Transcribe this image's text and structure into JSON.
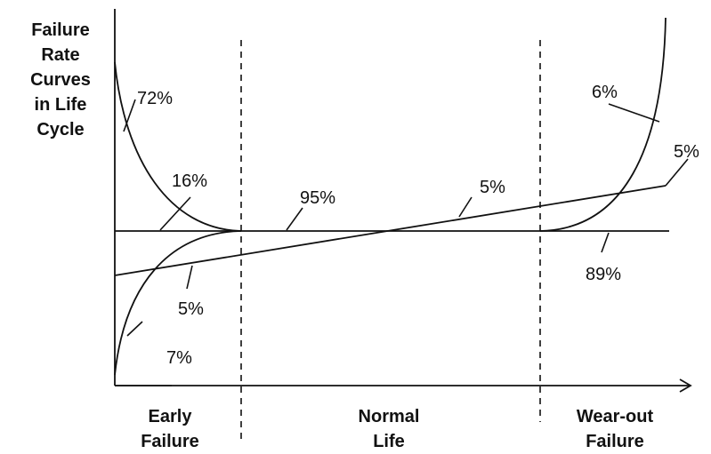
{
  "title_lines": [
    "Failure",
    "Rate",
    "Curves",
    "in Life",
    "Cycle"
  ],
  "regions": [
    {
      "line1": "Early",
      "line2": "Failure"
    },
    {
      "line1": "Normal",
      "line2": "Life"
    },
    {
      "line1": "Wear-out",
      "line2": "Failure"
    }
  ],
  "labels": {
    "early_decreasing": "72%",
    "early_decreasing_inner": "16%",
    "normal_flat": "95%",
    "rising_line_mid": "5%",
    "rising_line_end": "5%",
    "wearout_increasing": "6%",
    "wearout_flat": "89%",
    "early_increasing_inner": "5%",
    "early_increasing": "7%"
  }
}
